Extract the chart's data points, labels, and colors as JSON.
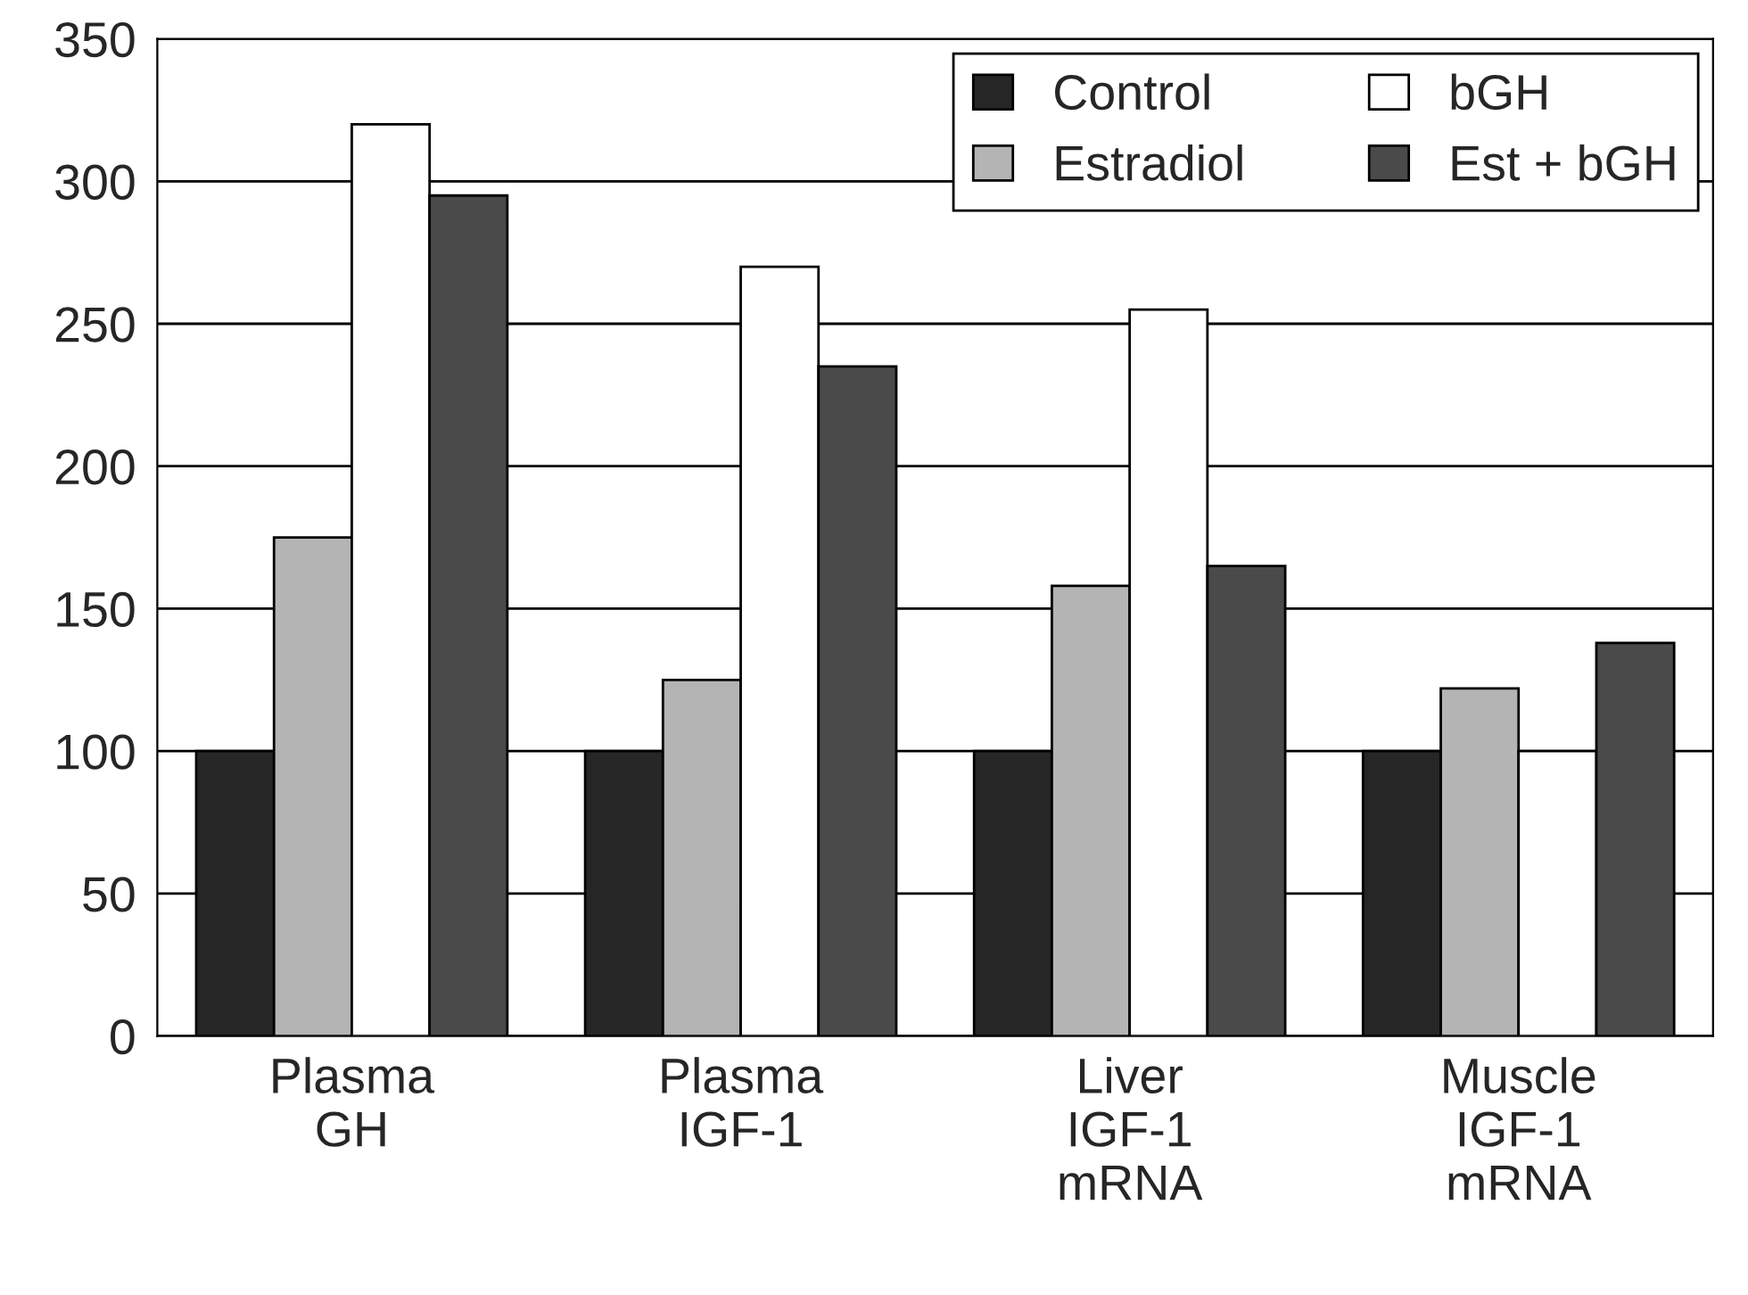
{
  "chart_data": {
    "type": "bar",
    "categories": [
      "Plasma\nGH",
      "Plasma\nIGF-1",
      "Liver\nIGF-1\nmRNA",
      "Muscle\nIGF-1\nmRNA"
    ],
    "series": [
      {
        "name": "Control",
        "color": "#262626",
        "values": [
          100,
          100,
          100,
          100
        ]
      },
      {
        "name": "Estradiol",
        "color": "#b4b4b4",
        "values": [
          175,
          125,
          158,
          122
        ]
      },
      {
        "name": "bGH",
        "color": "#ffffff",
        "values": [
          320,
          270,
          255,
          100
        ]
      },
      {
        "name": "Est + bGH",
        "color": "#4a4a4a",
        "values": [
          295,
          235,
          165,
          138
        ]
      }
    ],
    "ylim": [
      0,
      350
    ],
    "yticks": [
      0,
      50,
      100,
      150,
      200,
      250,
      300,
      350
    ],
    "grid": "y",
    "legend": "top right"
  }
}
